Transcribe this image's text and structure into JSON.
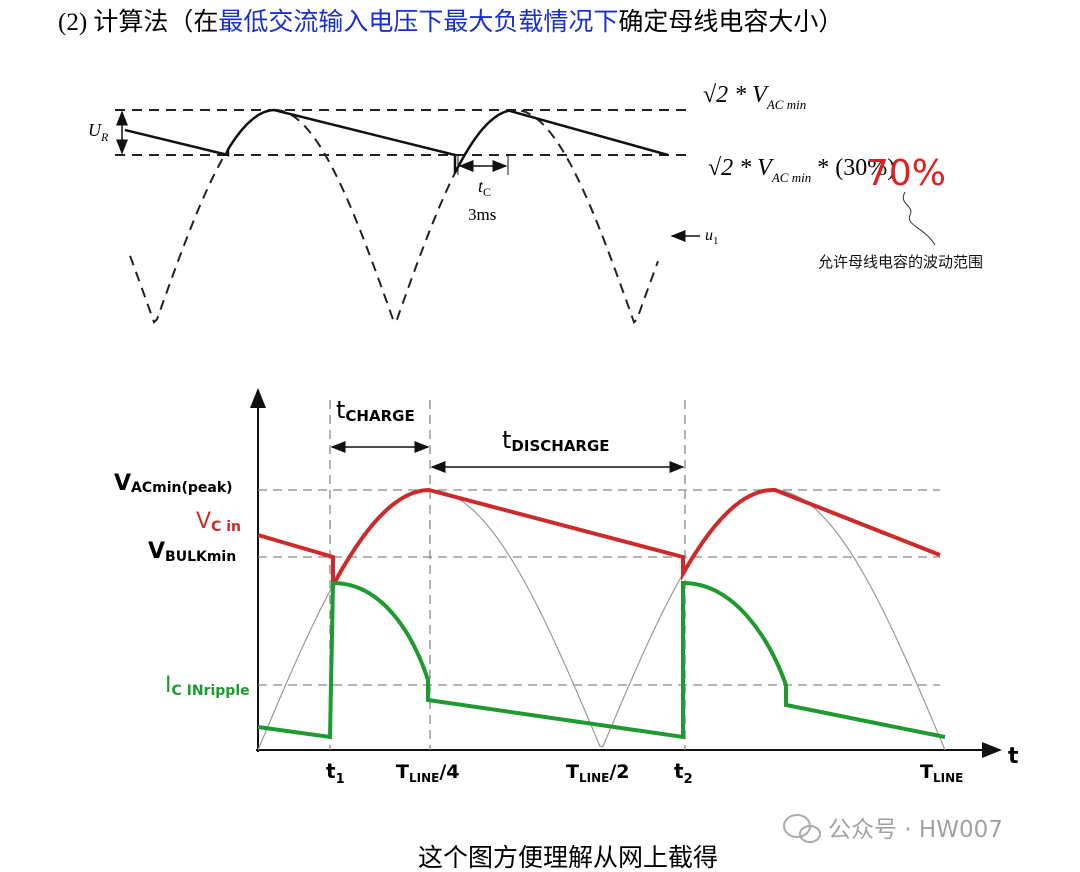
{
  "header": {
    "prefix": "(2)  计算法（在",
    "highlight": "最低交流输入电压下最大负载情况下",
    "suffix": "确定母线电容大小）"
  },
  "top_diagram": {
    "peak_label": {
      "main": "√2 * V",
      "sub": "AC min"
    },
    "min_label": {
      "main": "√2 * V",
      "sub": "AC min",
      "tail": " * (30%)"
    },
    "correction": "70%",
    "ripple": {
      "main": "U",
      "sub": "R"
    },
    "charge_time": {
      "main": "t",
      "sub": "C"
    },
    "charge_value": "3ms",
    "input": {
      "main": "u",
      "sub": "1"
    },
    "note": "允许母线电容的波动范围"
  },
  "bottom_diagram": {
    "t_charge": {
      "main": "t",
      "sub": "CHARGE"
    },
    "t_discharge": {
      "main": "t",
      "sub": "DISCHARGE"
    },
    "v_peak": {
      "main": "V",
      "sub": "ACmin(peak)"
    },
    "v_cin": {
      "main": "V",
      "sub": "C in"
    },
    "v_bulk": {
      "main": "V",
      "sub": "BULKmin"
    },
    "i_ripple": {
      "main": "I",
      "sub": "C INripple"
    },
    "t_axis": "t",
    "t1": {
      "main": "t",
      "sub": "1"
    },
    "quarter": {
      "main": "T",
      "sub": "LINE",
      "tail": "/4"
    },
    "half": {
      "main": "T",
      "sub": "LINE",
      "tail": "/2"
    },
    "t2": {
      "main": "t",
      "sub": "2"
    },
    "period": {
      "main": "T",
      "sub": "LINE"
    }
  },
  "caption": "这个图方便理解从网上截得",
  "watermark": "公众号 · HW007"
}
